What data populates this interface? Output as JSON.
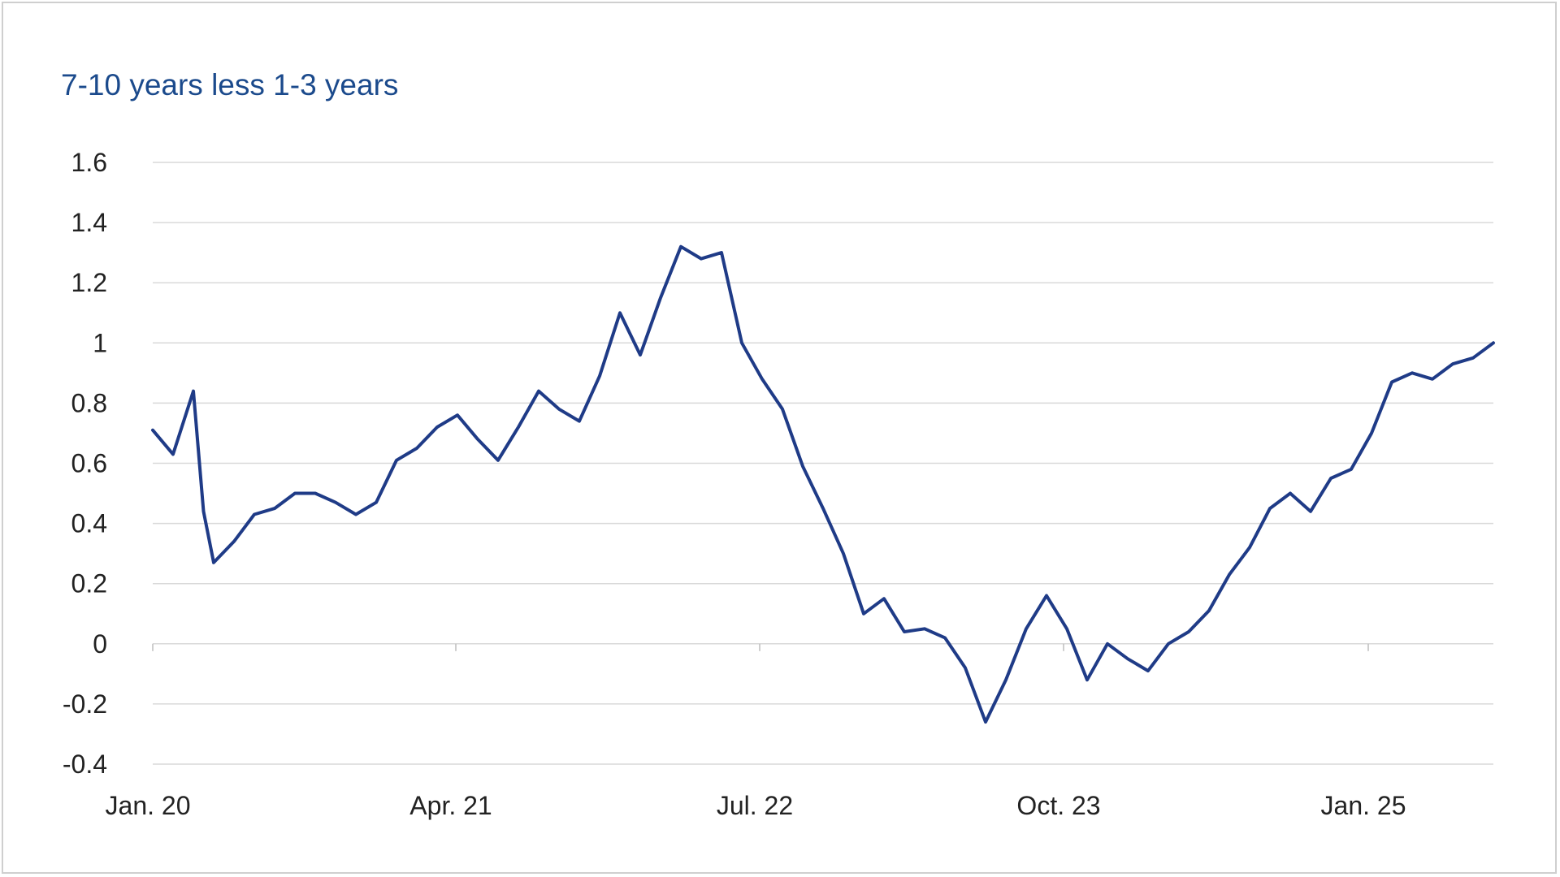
{
  "chart_data": {
    "type": "line",
    "title": "7-10 years less 1-3 years",
    "xlabel": "",
    "ylabel": "",
    "ylim": [
      -0.4,
      1.6
    ],
    "yticks": [
      "1.6",
      "1.4",
      "1.2",
      "1",
      "0.8",
      "0.6",
      "0.4",
      "0.2",
      "0",
      "-0.2",
      "-0.4"
    ],
    "xticks": [
      "Jan. 20",
      "Apr. 21",
      "Jul. 22",
      "Oct. 23",
      "Jan. 25"
    ],
    "grid": true,
    "colors": {
      "line": "#1f3b87",
      "grid": "#d9d9d9",
      "title": "#1b4a8c"
    },
    "series": [
      {
        "x": [
          "2020-01",
          "2020-02",
          "2020-03",
          "2020-03",
          "2020-04",
          "2020-05",
          "2020-06",
          "2020-07",
          "2020-08",
          "2020-09",
          "2020-10",
          "2020-11",
          "2020-12",
          "2021-01",
          "2021-02",
          "2021-03",
          "2021-04",
          "2021-05",
          "2021-06",
          "2021-07",
          "2021-08",
          "2021-09",
          "2021-10",
          "2021-11",
          "2021-12",
          "2022-01",
          "2022-02",
          "2022-03",
          "2022-04",
          "2022-05",
          "2022-06",
          "2022-07",
          "2022-08",
          "2022-09",
          "2022-10",
          "2022-11",
          "2022-12",
          "2023-01",
          "2023-02",
          "2023-03",
          "2023-04",
          "2023-05",
          "2023-06",
          "2023-07",
          "2023-08",
          "2023-09",
          "2023-10",
          "2023-11",
          "2023-12",
          "2024-01",
          "2024-02",
          "2024-03",
          "2024-04",
          "2024-05",
          "2024-06",
          "2024-07",
          "2024-08",
          "2024-09",
          "2024-10",
          "2024-11",
          "2024-12",
          "2025-01",
          "2025-02",
          "2025-03",
          "2025-04",
          "2025-05",
          "2025-06",
          "2025-07"
        ],
        "values": [
          0.71,
          0.63,
          0.84,
          0.44,
          0.27,
          0.34,
          0.43,
          0.45,
          0.5,
          0.5,
          0.47,
          0.43,
          0.47,
          0.61,
          0.65,
          0.72,
          0.76,
          0.68,
          0.61,
          0.72,
          0.84,
          0.78,
          0.74,
          0.89,
          1.1,
          0.96,
          1.15,
          1.32,
          1.28,
          1.3,
          1.0,
          0.88,
          0.78,
          0.59,
          0.45,
          0.3,
          0.1,
          0.15,
          0.04,
          0.05,
          0.02,
          -0.08,
          -0.26,
          -0.12,
          0.05,
          0.16,
          0.05,
          -0.12,
          0.0,
          -0.05,
          -0.09,
          0.0,
          0.04,
          0.11,
          0.23,
          0.32,
          0.45,
          0.5,
          0.44,
          0.55,
          0.58,
          0.7,
          0.87,
          0.9,
          0.88,
          0.93,
          0.95,
          1.0
        ]
      }
    ]
  }
}
